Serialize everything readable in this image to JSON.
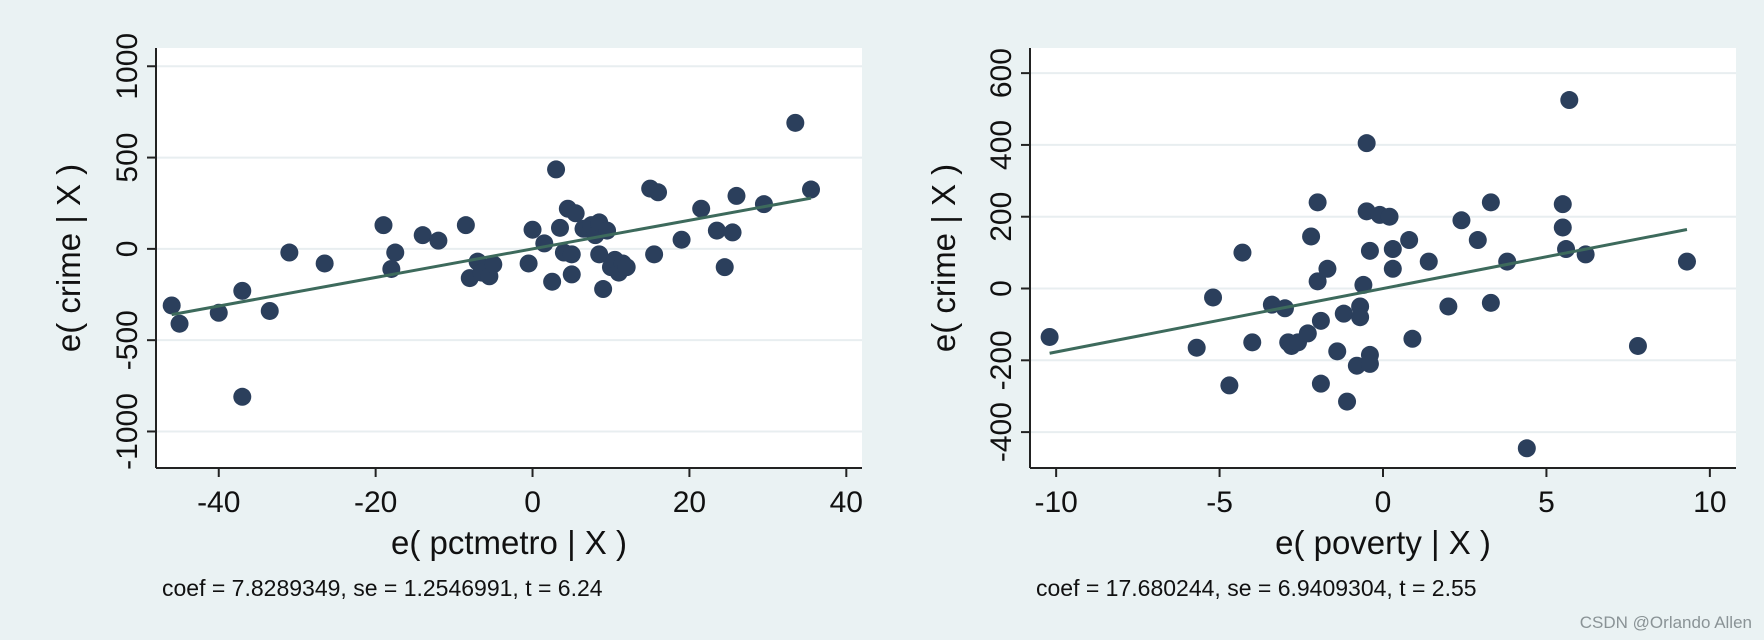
{
  "colors": {
    "background": "#eaf2f3",
    "plot_area": "#ffffff",
    "grid": "#e8eef0",
    "marker": "#2b3f5c",
    "fit_line": "#3d6a5c"
  },
  "watermark": "CSDN @Orlando Allen",
  "chart_data": [
    {
      "type": "scatter",
      "title": "",
      "xlabel": "e( pctmetro | X )",
      "ylabel": "e( crime | X )",
      "xlim": [
        -48,
        42
      ],
      "ylim": [
        -1200,
        1100
      ],
      "xticks": [
        -40,
        -20,
        0,
        20,
        40
      ],
      "xtick_labels": [
        "-40",
        "-20",
        "0",
        "20",
        "40"
      ],
      "yticks": [
        -1000,
        -500,
        0,
        500,
        1000
      ],
      "ytick_labels": [
        "-1000",
        "-500",
        "0",
        "500",
        "1000"
      ],
      "grid": true,
      "legend": "none",
      "note": "coef = 7.8289349, se = 1.2546991, t = 6.24",
      "fit_line": {
        "slope": 7.8289349,
        "intercept": 0,
        "x": [
          -46,
          35.5
        ]
      },
      "points": [
        [
          -46,
          -310
        ],
        [
          -45,
          -410
        ],
        [
          -40,
          -350
        ],
        [
          -37,
          -230
        ],
        [
          -37,
          -810
        ],
        [
          -33.5,
          -340
        ],
        [
          -31,
          -20
        ],
        [
          -26.5,
          -80
        ],
        [
          -19,
          130
        ],
        [
          -18,
          -110
        ],
        [
          -17.5,
          -20
        ],
        [
          -14,
          75
        ],
        [
          -12,
          45
        ],
        [
          -8.5,
          130
        ],
        [
          -8,
          -160
        ],
        [
          -7,
          -70
        ],
        [
          -6.5,
          -130
        ],
        [
          -5.5,
          -150
        ],
        [
          -5,
          -85
        ],
        [
          -0.5,
          -80
        ],
        [
          0,
          105
        ],
        [
          1.5,
          30
        ],
        [
          2.5,
          -180
        ],
        [
          3,
          435
        ],
        [
          3.5,
          115
        ],
        [
          4,
          -20
        ],
        [
          4.5,
          220
        ],
        [
          5,
          -30
        ],
        [
          5,
          -140
        ],
        [
          5.5,
          195
        ],
        [
          6.5,
          110
        ],
        [
          7.5,
          130
        ],
        [
          8,
          75
        ],
        [
          8.5,
          -30
        ],
        [
          8.5,
          145
        ],
        [
          9,
          -220
        ],
        [
          9.5,
          100
        ],
        [
          10,
          -100
        ],
        [
          10.5,
          -60
        ],
        [
          11,
          -130
        ],
        [
          11.5,
          -80
        ],
        [
          12,
          -100
        ],
        [
          15,
          330
        ],
        [
          15.5,
          -30
        ],
        [
          16,
          310
        ],
        [
          19,
          50
        ],
        [
          21.5,
          220
        ],
        [
          23.5,
          100
        ],
        [
          24.5,
          -100
        ],
        [
          25.5,
          90
        ],
        [
          26,
          290
        ],
        [
          29.5,
          245
        ],
        [
          33.5,
          690
        ],
        [
          35.5,
          325
        ]
      ]
    },
    {
      "type": "scatter",
      "title": "",
      "xlabel": "e( poverty | X )",
      "ylabel": "e( crime | X )",
      "xlim": [
        -10.8,
        10.8
      ],
      "ylim": [
        -500,
        670
      ],
      "xticks": [
        -10,
        -5,
        0,
        5,
        10
      ],
      "xtick_labels": [
        "-10",
        "-5",
        "0",
        "5",
        "10"
      ],
      "yticks": [
        -400,
        -200,
        0,
        200,
        400,
        600
      ],
      "ytick_labels": [
        "-400",
        "-200",
        "0",
        "200",
        "400",
        "600"
      ],
      "grid": true,
      "legend": "none",
      "note": "coef = 17.680244, se = 6.9409304, t = 2.55",
      "fit_line": {
        "slope": 17.680244,
        "intercept": 0,
        "x": [
          -10.2,
          9.3
        ]
      },
      "points": [
        [
          -10.2,
          -135
        ],
        [
          -5.7,
          -165
        ],
        [
          -5.2,
          -25
        ],
        [
          -4.7,
          -270
        ],
        [
          -4.3,
          100
        ],
        [
          -4,
          -150
        ],
        [
          -3.4,
          -45
        ],
        [
          -3,
          -55
        ],
        [
          -2.9,
          -150
        ],
        [
          -2.8,
          -160
        ],
        [
          -2.6,
          -150
        ],
        [
          -2.3,
          -125
        ],
        [
          -2.2,
          145
        ],
        [
          -2,
          240
        ],
        [
          -2,
          20
        ],
        [
          -1.9,
          -265
        ],
        [
          -1.9,
          -90
        ],
        [
          -1.7,
          55
        ],
        [
          -1.4,
          -175
        ],
        [
          -1.2,
          -70
        ],
        [
          -1.1,
          -315
        ],
        [
          -0.8,
          -215
        ],
        [
          -0.7,
          -50
        ],
        [
          -0.7,
          -80
        ],
        [
          -0.6,
          10
        ],
        [
          -0.5,
          405
        ],
        [
          -0.5,
          215
        ],
        [
          -0.4,
          105
        ],
        [
          -0.4,
          -185
        ],
        [
          -0.4,
          -210
        ],
        [
          -0.1,
          205
        ],
        [
          0.2,
          200
        ],
        [
          0.3,
          110
        ],
        [
          0.3,
          55
        ],
        [
          0.8,
          135
        ],
        [
          0.9,
          -140
        ],
        [
          1.4,
          75
        ],
        [
          2,
          -50
        ],
        [
          2.4,
          190
        ],
        [
          2.9,
          135
        ],
        [
          3.3,
          240
        ],
        [
          3.3,
          -40
        ],
        [
          3.8,
          75
        ],
        [
          4.4,
          -445
        ],
        [
          5.5,
          235
        ],
        [
          5.5,
          170
        ],
        [
          5.6,
          110
        ],
        [
          5.7,
          525
        ],
        [
          6.2,
          95
        ],
        [
          7.8,
          -160
        ],
        [
          9.3,
          75
        ]
      ]
    }
  ]
}
